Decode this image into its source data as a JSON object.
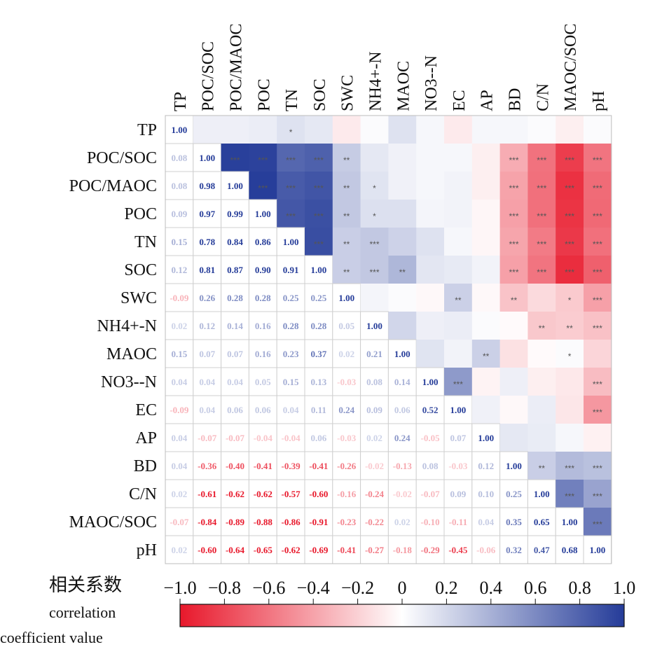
{
  "chart_data": {
    "type": "heatmap",
    "variables": [
      "TP",
      "POC/SOC",
      "POC/MAOC",
      "POC",
      "TN",
      "SOC",
      "SWC",
      "NH4+-N",
      "MAOC",
      "NO3--N",
      "EC",
      "AP",
      "BD",
      "C/N",
      "MAOC/SOC",
      "pH"
    ],
    "matrix": [
      [
        1.0,
        0.08,
        0.08,
        0.09,
        0.15,
        0.12,
        -0.09,
        0.02,
        0.15,
        0.04,
        -0.09,
        0.04,
        0.04,
        0.02,
        -0.07,
        0.02
      ],
      [
        0.08,
        1.0,
        0.98,
        0.97,
        0.78,
        0.81,
        0.26,
        0.12,
        0.07,
        0.04,
        0.04,
        -0.07,
        -0.36,
        -0.61,
        -0.84,
        -0.6
      ],
      [
        0.08,
        0.98,
        1.0,
        0.99,
        0.84,
        0.87,
        0.28,
        0.14,
        0.07,
        0.04,
        0.06,
        -0.07,
        -0.4,
        -0.62,
        -0.89,
        -0.64
      ],
      [
        0.09,
        0.97,
        0.99,
        1.0,
        0.86,
        0.9,
        0.28,
        0.16,
        0.16,
        0.05,
        0.06,
        -0.04,
        -0.41,
        -0.62,
        -0.88,
        -0.65
      ],
      [
        0.15,
        0.78,
        0.84,
        0.86,
        1.0,
        0.91,
        0.25,
        0.28,
        0.23,
        0.15,
        0.04,
        -0.04,
        -0.39,
        -0.57,
        -0.86,
        -0.62
      ],
      [
        0.12,
        0.81,
        0.87,
        0.9,
        0.91,
        1.0,
        0.25,
        0.28,
        0.37,
        0.13,
        0.11,
        0.06,
        -0.41,
        -0.6,
        -0.91,
        -0.69
      ],
      [
        -0.09,
        0.26,
        0.28,
        0.28,
        0.25,
        0.25,
        1.0,
        0.05,
        0.02,
        -0.03,
        0.24,
        -0.03,
        -0.26,
        -0.16,
        -0.23,
        -0.41
      ],
      [
        0.02,
        0.12,
        0.14,
        0.16,
        0.28,
        0.28,
        0.05,
        1.0,
        0.21,
        0.08,
        0.09,
        0.02,
        -0.02,
        -0.24,
        -0.22,
        -0.27
      ],
      [
        0.15,
        0.07,
        0.07,
        0.16,
        0.23,
        0.37,
        0.02,
        0.21,
        1.0,
        0.14,
        0.06,
        0.24,
        -0.13,
        -0.02,
        0.02,
        -0.18
      ],
      [
        0.04,
        0.04,
        0.04,
        0.05,
        0.15,
        0.13,
        -0.03,
        0.08,
        0.14,
        1.0,
        0.52,
        -0.05,
        0.08,
        -0.07,
        -0.1,
        -0.29
      ],
      [
        -0.09,
        0.04,
        0.06,
        0.06,
        0.04,
        0.11,
        0.24,
        0.09,
        0.06,
        0.52,
        1.0,
        0.07,
        -0.03,
        0.09,
        -0.11,
        -0.45
      ],
      [
        0.04,
        -0.07,
        -0.07,
        -0.04,
        -0.04,
        0.06,
        -0.03,
        0.02,
        0.24,
        -0.05,
        0.07,
        1.0,
        0.12,
        0.1,
        0.04,
        -0.06
      ],
      [
        0.04,
        -0.36,
        -0.4,
        -0.41,
        -0.39,
        -0.41,
        -0.26,
        -0.02,
        -0.13,
        0.08,
        -0.03,
        0.12,
        1.0,
        0.25,
        0.35,
        0.32
      ],
      [
        0.02,
        -0.61,
        -0.62,
        -0.62,
        -0.57,
        -0.6,
        -0.16,
        -0.24,
        -0.02,
        -0.07,
        0.09,
        0.1,
        0.25,
        1.0,
        0.65,
        0.47
      ],
      [
        -0.07,
        -0.84,
        -0.89,
        -0.88,
        -0.86,
        -0.91,
        -0.23,
        -0.22,
        0.02,
        -0.1,
        -0.11,
        0.04,
        0.35,
        0.65,
        1.0,
        0.68
      ],
      [
        0.02,
        -0.6,
        -0.64,
        -0.65,
        -0.62,
        -0.69,
        -0.41,
        -0.27,
        -0.18,
        -0.29,
        -0.45,
        -0.06,
        0.32,
        0.47,
        0.68,
        1.0
      ]
    ],
    "significance_upper": [
      [
        "",
        "",
        "",
        "",
        "*",
        "",
        "",
        "",
        "",
        "",
        "",
        "",
        "",
        "",
        "",
        ""
      ],
      [
        "",
        "",
        "***",
        "***",
        "***",
        "***",
        "**",
        "",
        "",
        "",
        "",
        "",
        "***",
        "***",
        "***",
        "***"
      ],
      [
        "",
        "",
        "",
        "***",
        "***",
        "***",
        "**",
        "*",
        "",
        "",
        "",
        "",
        "***",
        "***",
        "***",
        "***"
      ],
      [
        "",
        "",
        "",
        "",
        "***",
        "***",
        "**",
        "*",
        "",
        "",
        "",
        "",
        "***",
        "***",
        "***",
        "***"
      ],
      [
        "",
        "",
        "",
        "",
        "",
        "***",
        "**",
        "***",
        "",
        "",
        "",
        "",
        "***",
        "***",
        "***",
        "***"
      ],
      [
        "",
        "",
        "",
        "",
        "",
        "",
        "**",
        "***",
        "**",
        "",
        "",
        "",
        "***",
        "***",
        "***",
        "***"
      ],
      [
        "",
        "",
        "",
        "",
        "",
        "",
        "",
        "",
        "",
        "",
        "**",
        "",
        "**",
        "",
        "*",
        "***"
      ],
      [
        "",
        "",
        "",
        "",
        "",
        "",
        "",
        "",
        "",
        "",
        "",
        "",
        "",
        "**",
        "**",
        "***"
      ],
      [
        "",
        "",
        "",
        "",
        "",
        "",
        "",
        "",
        "",
        "",
        "",
        "**",
        "",
        "",
        "*",
        ""
      ],
      [
        "",
        "",
        "",
        "",
        "",
        "",
        "",
        "",
        "",
        "",
        "***",
        "",
        "",
        "",
        "",
        "***"
      ],
      [
        "",
        "",
        "",
        "",
        "",
        "",
        "",
        "",
        "",
        "",
        "",
        "",
        "",
        "",
        "",
        "***"
      ],
      [
        "",
        "",
        "",
        "",
        "",
        "",
        "",
        "",
        "",
        "",
        "",
        "",
        "",
        "",
        "",
        ""
      ],
      [
        "",
        "",
        "",
        "",
        "",
        "",
        "",
        "",
        "",
        "",
        "",
        "",
        "",
        "**",
        "***",
        "***"
      ],
      [
        "",
        "",
        "",
        "",
        "",
        "",
        "",
        "",
        "",
        "",
        "",
        "",
        "",
        "",
        "***",
        "***"
      ],
      [
        "",
        "",
        "",
        "",
        "",
        "",
        "",
        "",
        "",
        "",
        "",
        "",
        "",
        "",
        "",
        "***"
      ],
      [
        "",
        "",
        "",
        "",
        "",
        "",
        "",
        "",
        "",
        "",
        "",
        "",
        "",
        "",
        "",
        ""
      ]
    ],
    "colorscale": {
      "min": -1.0,
      "max": 1.0,
      "negative": "#e8182b",
      "zero": "#ffffff",
      "positive": "#253c99"
    },
    "colorbar": {
      "title": "相关系数",
      "subtitle_line1": "correlation",
      "subtitle_line2": "coefficient value",
      "ticks": [
        "−1.0",
        "−0.8",
        "−0.6",
        "−0.4",
        "−0.2",
        "0",
        "0.2",
        "0.4",
        "0.6",
        "0.8",
        "1.0"
      ]
    }
  }
}
